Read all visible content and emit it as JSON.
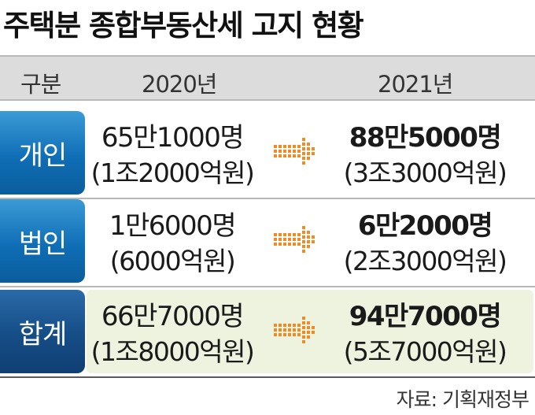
{
  "title": "주택분 종합부동산세 고지 현황",
  "chart_data": {
    "type": "table",
    "columns": [
      "구분",
      "2020년",
      "2021년"
    ],
    "rows": [
      {
        "category": "개인",
        "y2020_people": "65만1000명",
        "y2020_amount": "(1조2000억원)",
        "y2021_people": "88만5000명",
        "y2021_amount": "(3조3000억원)"
      },
      {
        "category": "법인",
        "y2020_people": "1만6000명",
        "y2020_amount": "(6000억원)",
        "y2021_people": "6만2000명",
        "y2021_amount": "(2조3000억원)"
      },
      {
        "category": "합계",
        "y2020_people": "66만7000명",
        "y2020_amount": "(1조8000억원)",
        "y2021_people": "94만7000명",
        "y2021_amount": "(5조7000억원)"
      }
    ]
  },
  "source": "자료: 기획재정부",
  "colors": {
    "header_bg": "#dcdcdc",
    "category_blue": "#0f6eb6",
    "category_total": "#154d86",
    "total_row_bg": "#eef3df",
    "arrow_orange": "#f08a24"
  }
}
